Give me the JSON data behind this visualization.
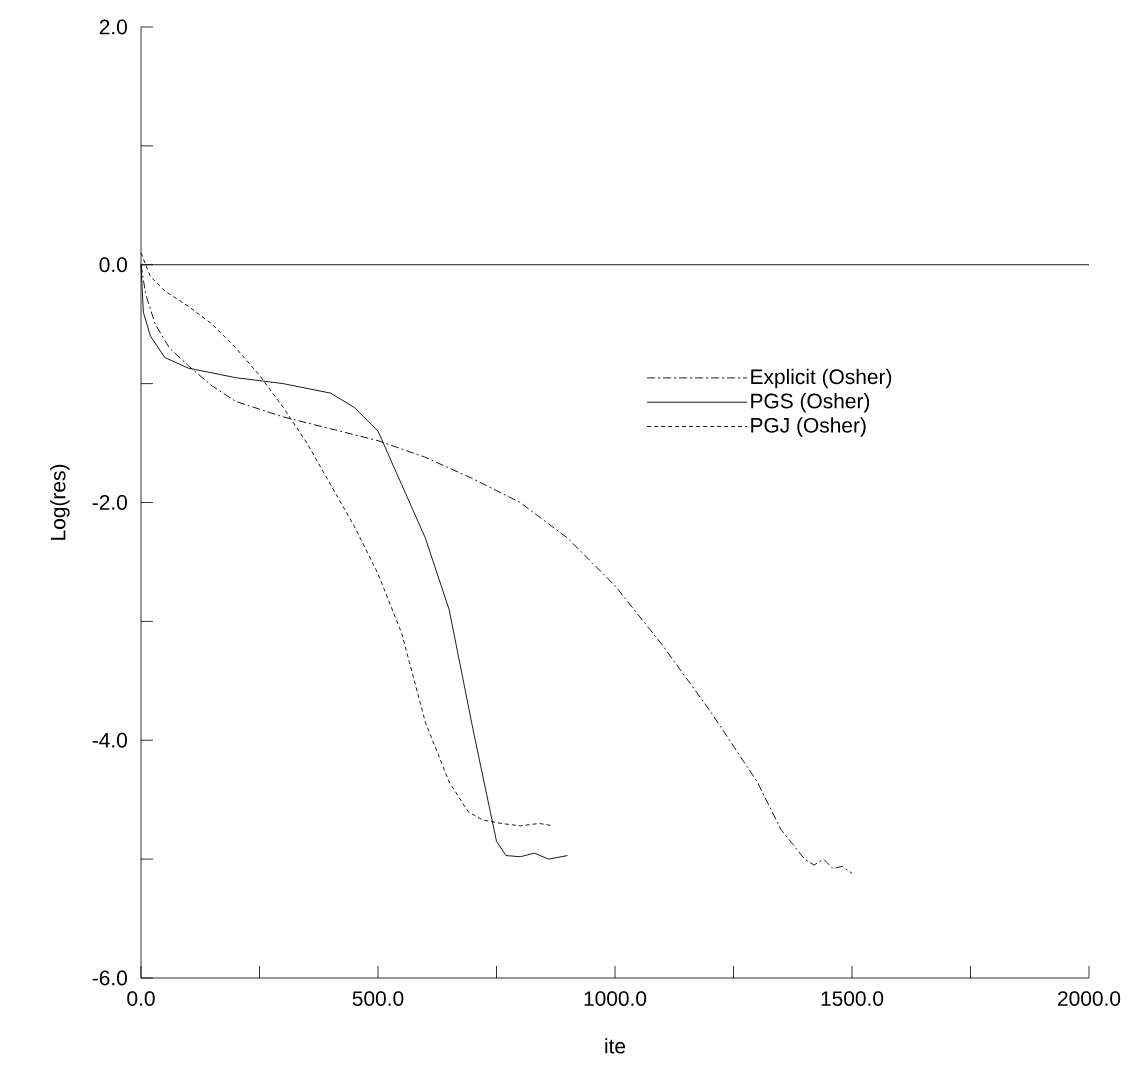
{
  "chart_data": {
    "type": "line",
    "xlabel": "ite",
    "ylabel": "Log(res)",
    "xlim": [
      0,
      2000
    ],
    "ylim": [
      -6,
      2
    ],
    "xticks": [
      {
        "value": 0,
        "label": "0.0"
      },
      {
        "value": 250,
        "label": null
      },
      {
        "value": 500,
        "label": "500.0"
      },
      {
        "value": 750,
        "label": null
      },
      {
        "value": 1000,
        "label": "1000.0"
      },
      {
        "value": 1250,
        "label": null
      },
      {
        "value": 1500,
        "label": "1500.0"
      },
      {
        "value": 1750,
        "label": null
      },
      {
        "value": 2000,
        "label": "2000.0"
      }
    ],
    "yticks": [
      {
        "value": -6,
        "label": "-6.0"
      },
      {
        "value": -5,
        "label": null
      },
      {
        "value": -4,
        "label": "-4.0"
      },
      {
        "value": -3,
        "label": null
      },
      {
        "value": -2,
        "label": "-2.0"
      },
      {
        "value": -1,
        "label": null
      },
      {
        "value": 0,
        "label": "0.0"
      },
      {
        "value": 1,
        "label": null
      },
      {
        "value": 2,
        "label": "2.0"
      }
    ],
    "grid": false,
    "legend": "right",
    "marker": "none",
    "ref_lines": [
      {
        "axis": "y",
        "value": 0,
        "color": "#000000",
        "line_style": "solid"
      }
    ],
    "series": [
      {
        "name": "Explicit (Osher)",
        "color": "#000000",
        "line_style": "dashdot",
        "x": [
          0,
          10,
          30,
          60,
          100,
          150,
          200,
          300,
          400,
          500,
          600,
          700,
          800,
          900,
          1000,
          1100,
          1200,
          1300,
          1350,
          1400,
          1420,
          1440,
          1460,
          1480,
          1500
        ],
        "values": [
          0,
          -0.25,
          -0.5,
          -0.7,
          -0.85,
          -1.02,
          -1.15,
          -1.28,
          -1.38,
          -1.48,
          -1.62,
          -1.8,
          -2.0,
          -2.3,
          -2.7,
          -3.2,
          -3.75,
          -4.35,
          -4.75,
          -5.0,
          -5.05,
          -5.0,
          -5.08,
          -5.06,
          -5.12
        ]
      },
      {
        "name": "PGS (Osher)",
        "color": "#000000",
        "line_style": "solid",
        "x": [
          0,
          5,
          20,
          50,
          100,
          200,
          300,
          400,
          450,
          500,
          550,
          600,
          650,
          700,
          750,
          770,
          800,
          830,
          860,
          900
        ],
        "values": [
          0,
          -0.4,
          -0.6,
          -0.78,
          -0.87,
          -0.95,
          -1.0,
          -1.08,
          -1.2,
          -1.4,
          -1.85,
          -2.3,
          -2.9,
          -3.9,
          -4.85,
          -4.97,
          -4.98,
          -4.95,
          -5.0,
          -4.97
        ]
      },
      {
        "name": "PGJ (Osher)",
        "color": "#000000",
        "line_style": "dashed",
        "x": [
          0,
          20,
          50,
          100,
          150,
          200,
          250,
          300,
          350,
          400,
          450,
          500,
          550,
          600,
          650,
          690,
          720,
          760,
          800,
          840,
          870
        ],
        "values": [
          0.1,
          -0.1,
          -0.22,
          -0.35,
          -0.5,
          -0.7,
          -0.93,
          -1.2,
          -1.5,
          -1.85,
          -2.2,
          -2.6,
          -3.1,
          -3.85,
          -4.35,
          -4.6,
          -4.67,
          -4.7,
          -4.72,
          -4.7,
          -4.72
        ]
      }
    ]
  }
}
